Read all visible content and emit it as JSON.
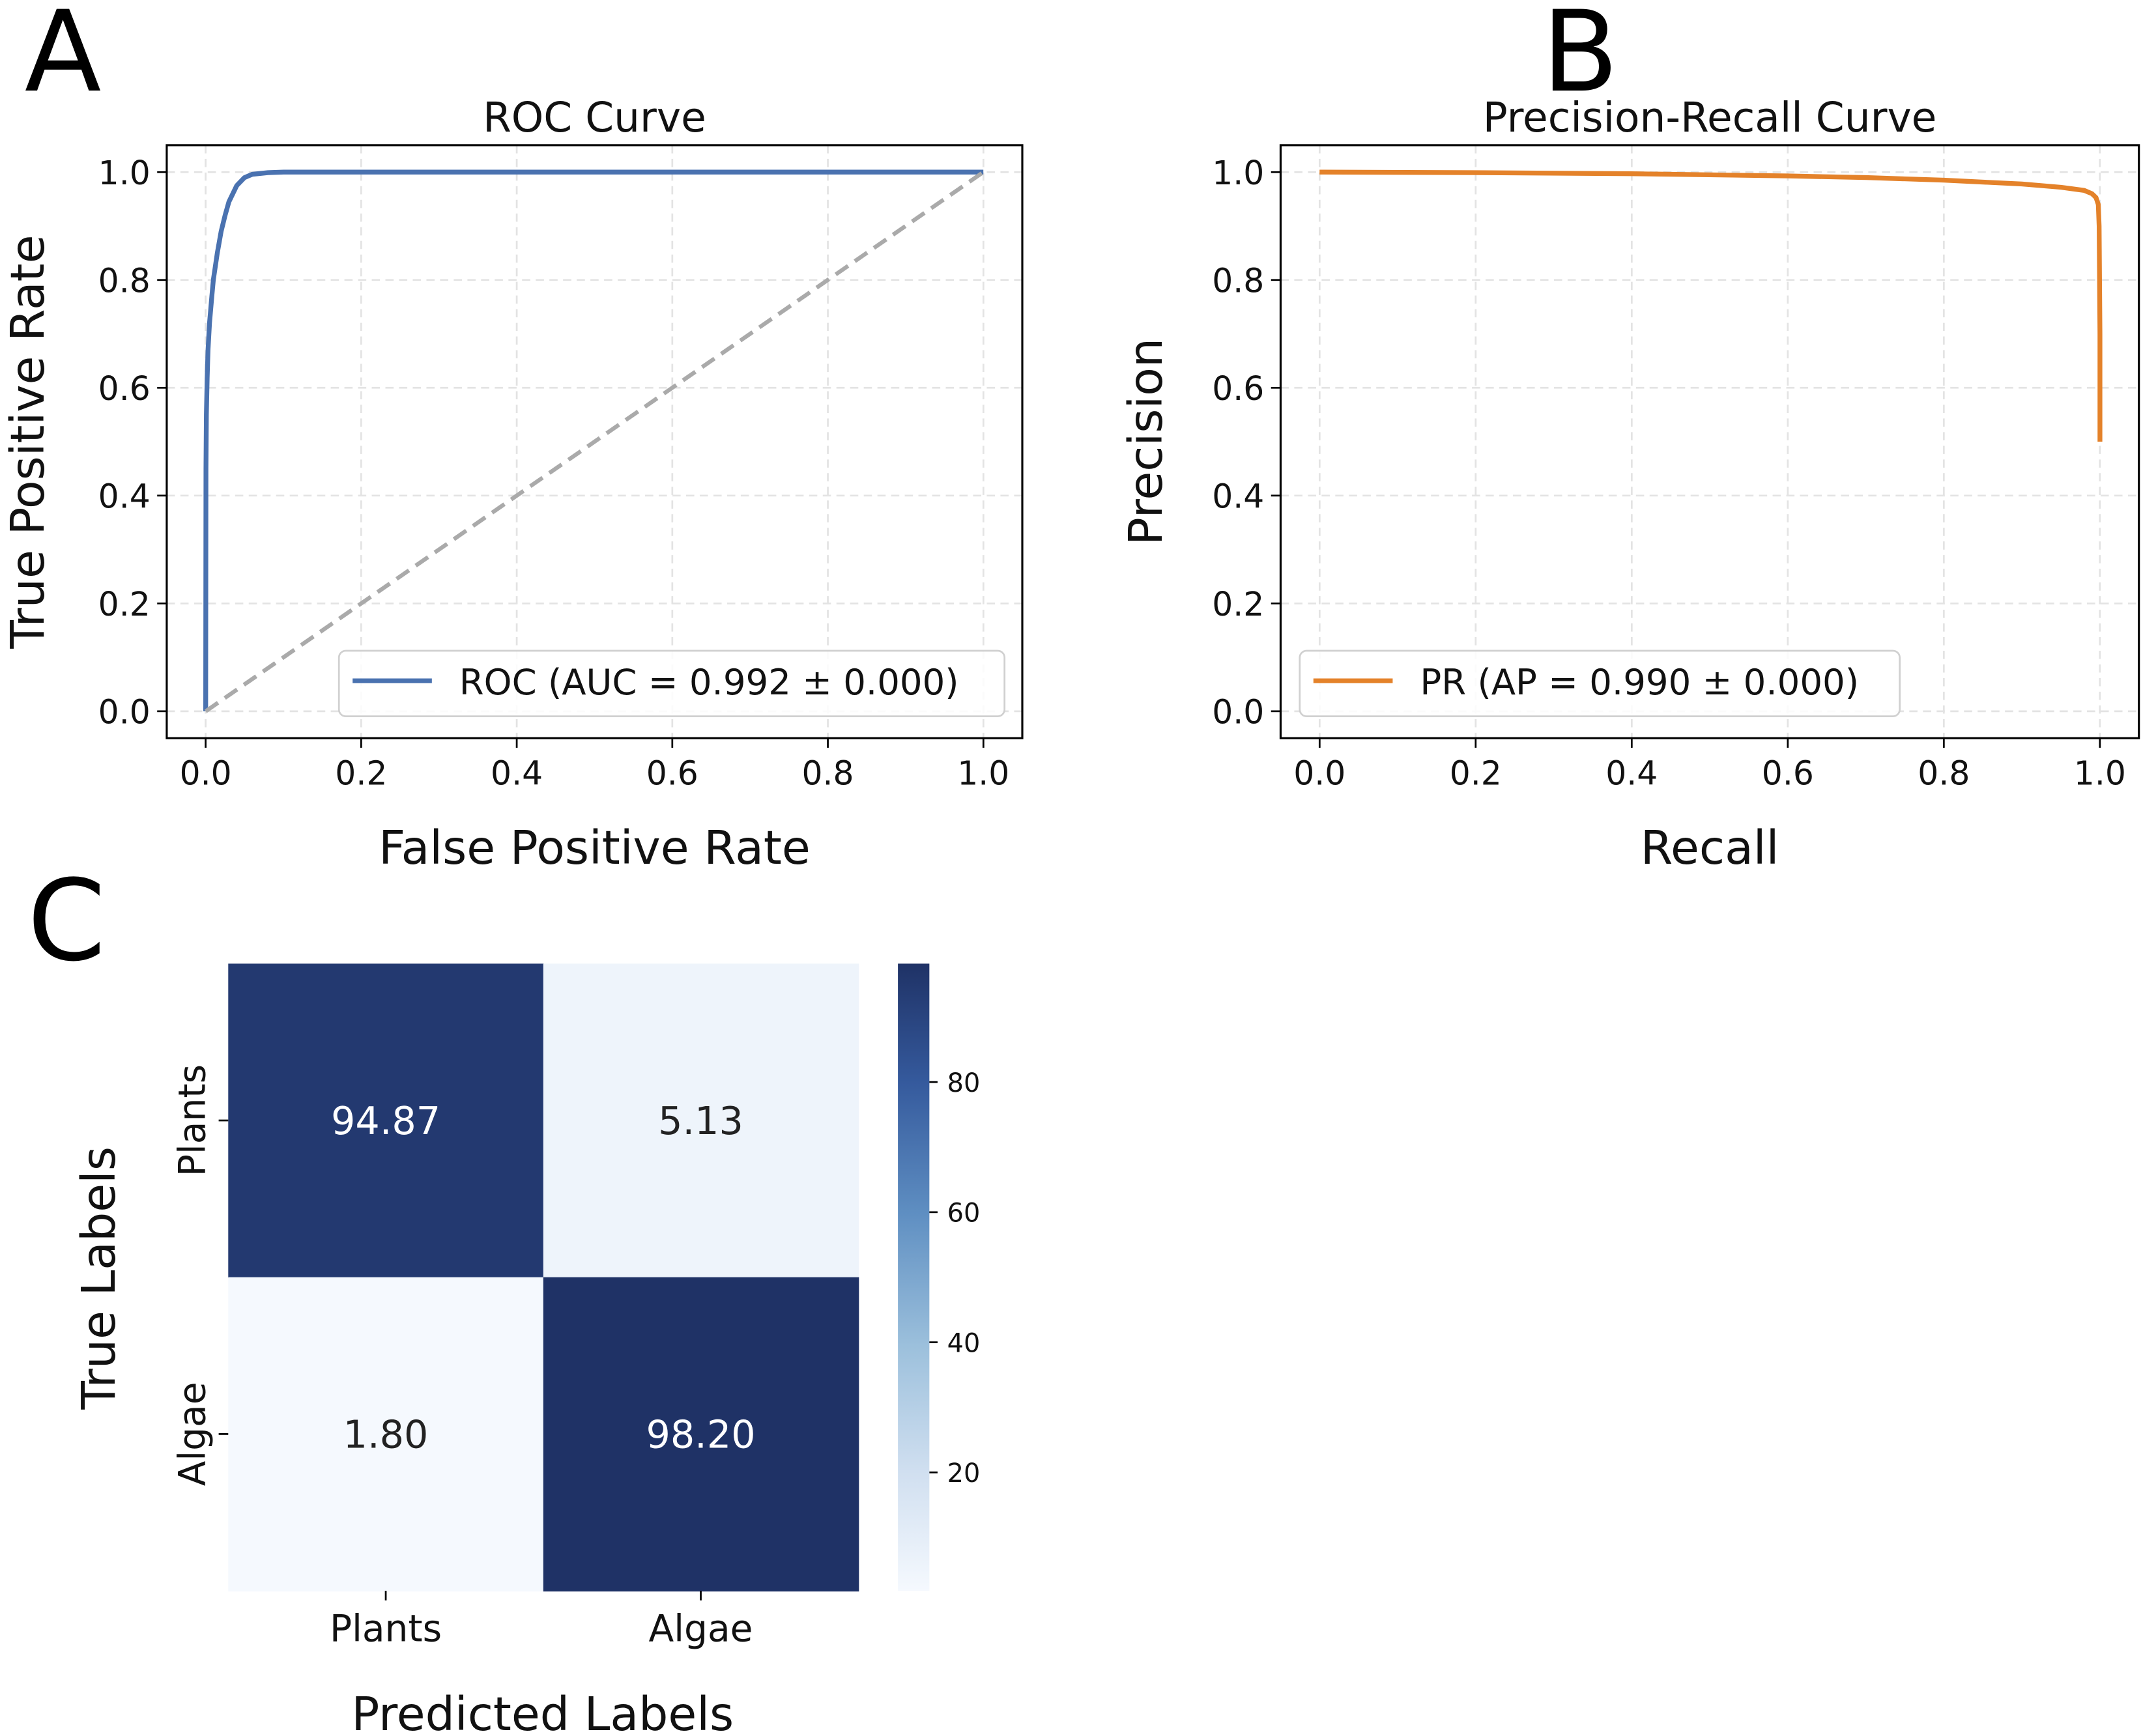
{
  "chart_data": [
    {
      "panel": "A",
      "type": "line",
      "title": "ROC Curve",
      "xlabel": "False Positive Rate",
      "ylabel": "True Positive Rate",
      "xlim": [
        -0.05,
        1.05
      ],
      "ylim": [
        -0.05,
        1.05
      ],
      "xticks": [
        "0.0",
        "0.2",
        "0.4",
        "0.6",
        "0.8",
        "1.0"
      ],
      "yticks": [
        "0.0",
        "0.2",
        "0.4",
        "0.6",
        "0.8",
        "1.0"
      ],
      "grid": true,
      "legend_position": "lower-right",
      "series": [
        {
          "name": "ROC (AUC = 0.992 ± 0.000)",
          "color": "#4a72b0",
          "x": [
            0,
            0.0005,
            0.001,
            0.002,
            0.003,
            0.005,
            0.008,
            0.01,
            0.015,
            0.02,
            0.025,
            0.03,
            0.04,
            0.05,
            0.06,
            0.08,
            0.1,
            0.2,
            0.5,
            1.0
          ],
          "y": [
            0,
            0.45,
            0.55,
            0.62,
            0.67,
            0.72,
            0.77,
            0.8,
            0.85,
            0.89,
            0.92,
            0.945,
            0.975,
            0.99,
            0.996,
            0.999,
            1.0,
            1.0,
            1.0,
            1.0
          ]
        },
        {
          "name": "chance",
          "color": "#aaaaaa",
          "dashed": true,
          "x": [
            0,
            1
          ],
          "y": [
            0,
            1
          ]
        }
      ]
    },
    {
      "panel": "B",
      "type": "line",
      "title": "Precision-Recall Curve",
      "xlabel": "Recall",
      "ylabel": "Precision",
      "xlim": [
        -0.05,
        1.05
      ],
      "ylim": [
        -0.05,
        1.05
      ],
      "xticks": [
        "0.0",
        "0.2",
        "0.4",
        "0.6",
        "0.8",
        "1.0"
      ],
      "yticks": [
        "0.0",
        "0.2",
        "0.4",
        "0.6",
        "0.8",
        "1.0"
      ],
      "grid": true,
      "legend_position": "lower-left",
      "series": [
        {
          "name": "PR (AP = 0.990 ± 0.000)",
          "color": "#e4822a",
          "x": [
            0,
            0.2,
            0.4,
            0.6,
            0.7,
            0.8,
            0.9,
            0.95,
            0.98,
            0.99,
            0.995,
            0.998,
            0.999,
            1.0,
            1.0
          ],
          "y": [
            1.0,
            0.999,
            0.997,
            0.993,
            0.99,
            0.985,
            0.978,
            0.972,
            0.966,
            0.96,
            0.953,
            0.94,
            0.9,
            0.7,
            0.5
          ]
        }
      ]
    },
    {
      "panel": "C",
      "type": "heatmap",
      "xlabel": "Predicted Labels",
      "ylabel": "True Labels",
      "x_categories": [
        "Plants",
        "Algae"
      ],
      "y_categories": [
        "Plants",
        "Algae"
      ],
      "values": [
        [
          "94.87",
          "5.13"
        ],
        [
          "1.80",
          "98.20"
        ]
      ],
      "colorbar": {
        "ticks": [
          "20",
          "40",
          "60",
          "80"
        ],
        "range": [
          1.8,
          98.2
        ],
        "colormap": "Blues"
      }
    }
  ]
}
